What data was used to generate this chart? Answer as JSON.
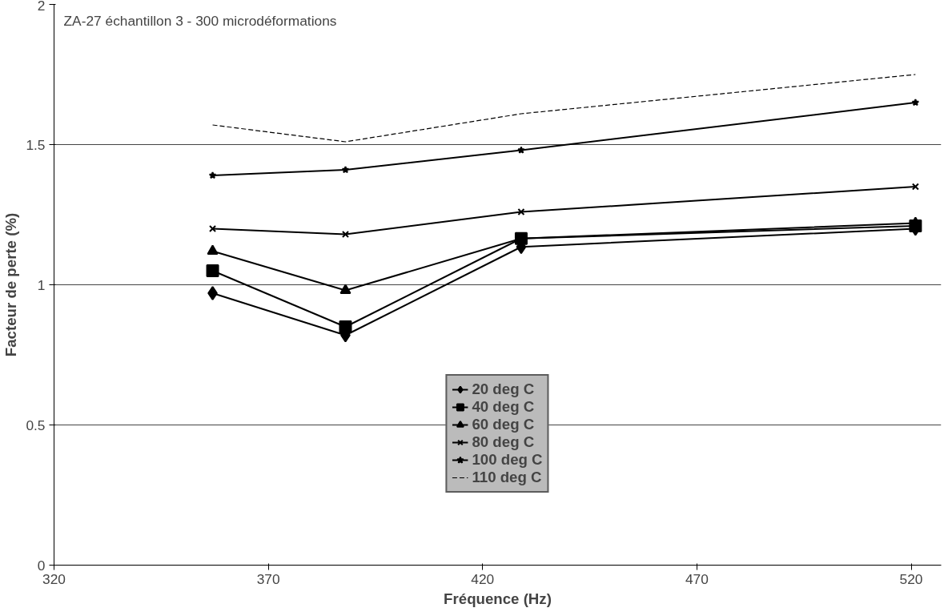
{
  "chart_data": {
    "type": "line",
    "title": "ZA-27 échantillon 3 - 300 microdéformations",
    "xlabel": "Fréquence (Hz)",
    "ylabel": "Facteur de perte (%)",
    "x": [
      357,
      388,
      429,
      521
    ],
    "series": [
      {
        "name": "20 deg C",
        "color": "#000000",
        "marker": "diamond",
        "line_style": "solid",
        "values": [
          0.97,
          0.82,
          1.135,
          1.2
        ]
      },
      {
        "name": "40 deg C",
        "color": "#000000",
        "marker": "square",
        "line_style": "solid",
        "values": [
          1.05,
          0.85,
          1.165,
          1.21
        ]
      },
      {
        "name": "60 deg C",
        "color": "#000000",
        "marker": "triangle",
        "line_style": "solid",
        "values": [
          1.12,
          0.98,
          1.165,
          1.22
        ]
      },
      {
        "name": "80 deg C",
        "color": "#000000",
        "marker": "cross",
        "line_style": "solid",
        "values": [
          1.2,
          1.18,
          1.26,
          1.35
        ]
      },
      {
        "name": "100 deg C",
        "color": "#000000",
        "marker": "star",
        "line_style": "solid",
        "values": [
          1.39,
          1.41,
          1.48,
          1.65
        ]
      },
      {
        "name": "110 deg C",
        "color": "#000000",
        "marker": "none",
        "line_style": "dashed",
        "values": [
          1.57,
          1.51,
          1.61,
          1.75
        ]
      }
    ],
    "xlim": [
      320,
      527
    ],
    "ylim": [
      0,
      2
    ],
    "xticks": [
      320,
      370,
      420,
      470,
      520
    ],
    "yticks": [
      0,
      0.5,
      1,
      1.5,
      2
    ],
    "grid": "y",
    "legend": "bottom"
  }
}
